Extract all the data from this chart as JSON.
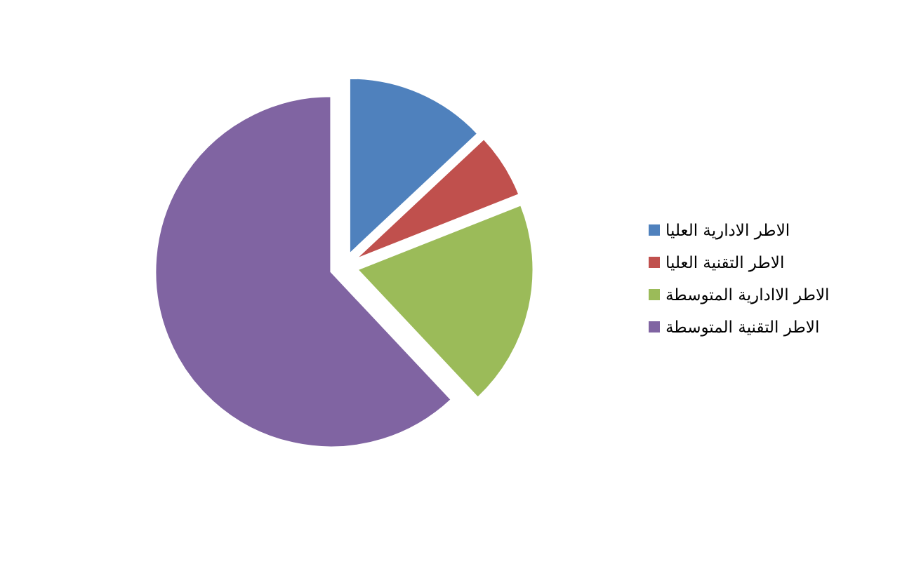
{
  "chart_data": {
    "type": "pie",
    "categories": [
      "الاطر الادارية العليا",
      "الاطر التقنية العليا",
      "الاطر الاادارية المتوسطة",
      "الاطر التقنية المتوسطة"
    ],
    "values": [
      13,
      6,
      19,
      62
    ],
    "colors": [
      "#4f81bd",
      "#c0504d",
      "#9bbb59",
      "#8064a2"
    ],
    "legend": "right"
  }
}
